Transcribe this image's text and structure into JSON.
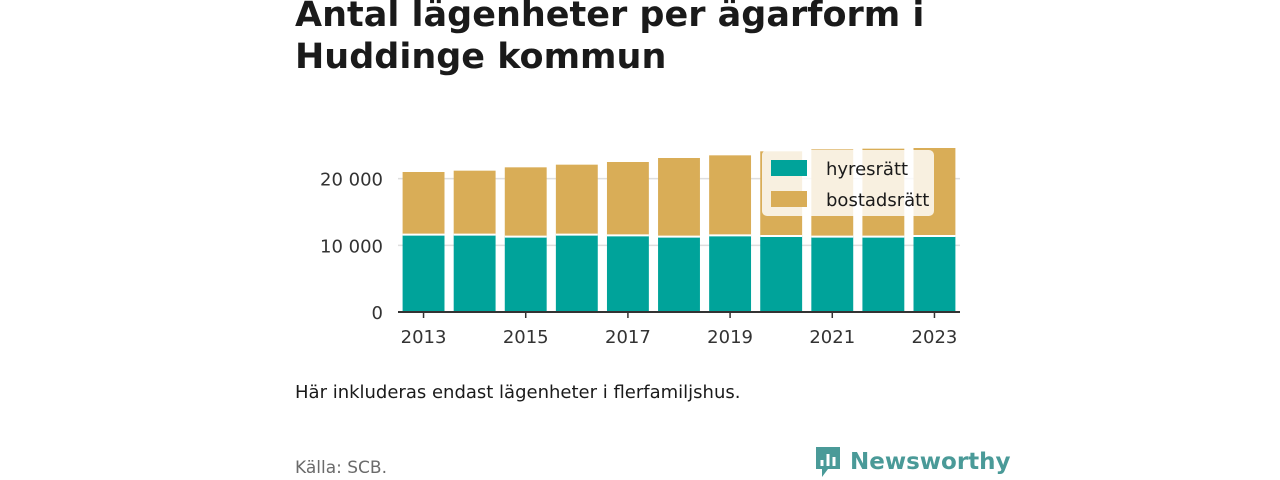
{
  "title": "Antal lägenheter per ägarform i Huddinge kommun",
  "note": "Här inkluderas endast lägenheter i flerfamiljshus.",
  "source": "Källa: SCB.",
  "brand": {
    "name": "Newsworthy",
    "icon": "newsworthy-logo-icon",
    "color": "#4a9a98"
  },
  "chart_data": {
    "type": "bar",
    "stacked": true,
    "categories": [
      "2013",
      "2014",
      "2015",
      "2016",
      "2017",
      "2018",
      "2019",
      "2020",
      "2021",
      "2022",
      "2023"
    ],
    "x_tick_labels": [
      "2013",
      "2015",
      "2017",
      "2019",
      "2021",
      "2023"
    ],
    "y_tick_labels": [
      "0",
      "10 000",
      "20 000"
    ],
    "y_ticks": [
      0,
      10000,
      20000
    ],
    "ylim": [
      0,
      24000
    ],
    "grid": true,
    "legend_position": "top-right",
    "series": [
      {
        "name": "hyresrätt",
        "color": "#00a39a",
        "values": [
          11600,
          11600,
          11300,
          11600,
          11500,
          11300,
          11500,
          11400,
          11300,
          11300,
          11400
        ]
      },
      {
        "name": "bostadsrätt",
        "color": "#d9ad57",
        "values": [
          9400,
          9600,
          10400,
          10500,
          11000,
          11800,
          12000,
          12700,
          13100,
          13200,
          13200
        ]
      }
    ]
  }
}
